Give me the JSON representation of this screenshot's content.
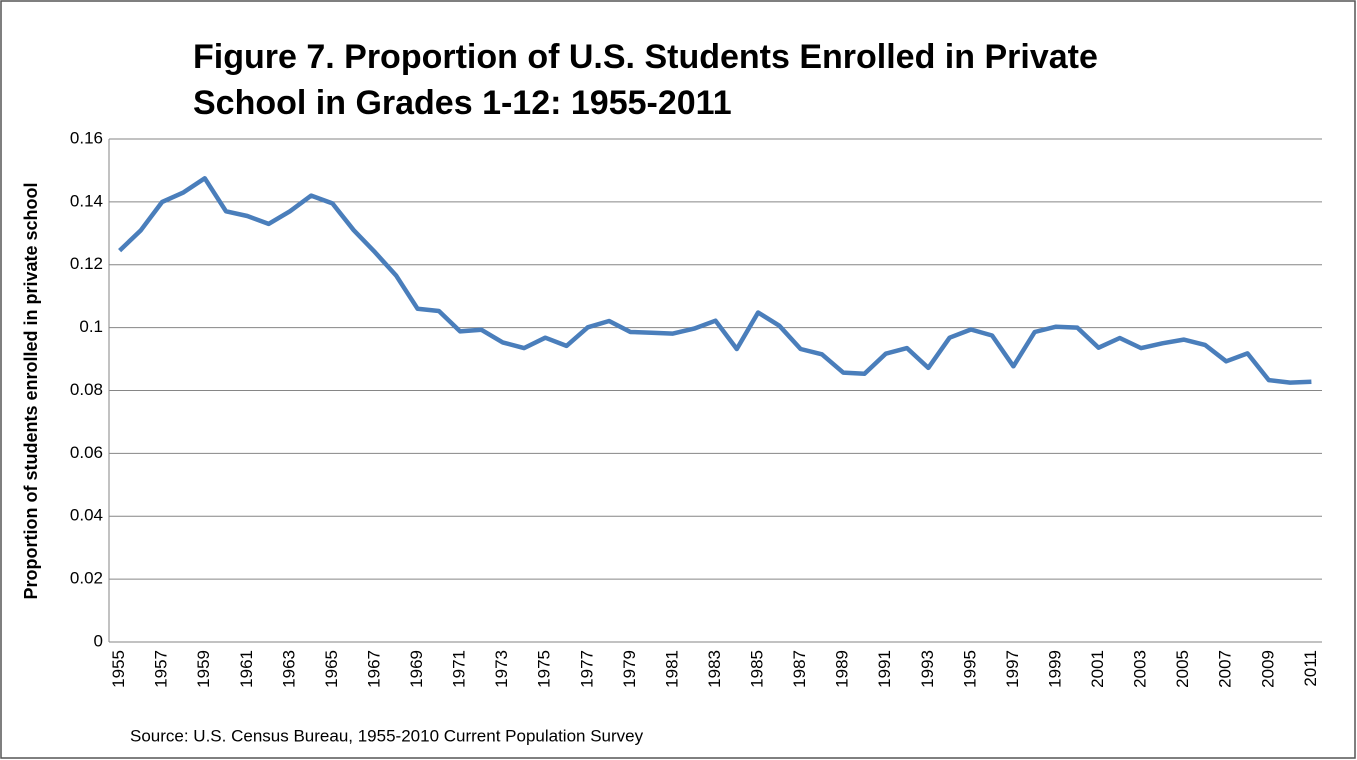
{
  "chart_data": {
    "type": "line",
    "title": "Figure 7. Proportion of U.S. Students Enrolled in Private School in Grades 1-12: 1955-2011",
    "y_label": "Proportion of students enrolled in private school",
    "source": "Source: U.S. Census Bureau, 1955-2010 Current Population Survey",
    "categories": [
      "1955",
      null,
      "1957",
      null,
      "1959",
      null,
      "1961",
      null,
      "1963",
      null,
      "1965",
      null,
      "1967",
      null,
      "1969",
      null,
      "1971",
      null,
      "1973",
      null,
      "1975",
      null,
      "1977",
      null,
      "1979",
      null,
      "1981",
      null,
      "1983",
      null,
      "1985",
      null,
      "1987",
      null,
      "1989",
      null,
      "1991",
      null,
      "1993",
      null,
      "1995",
      null,
      "1997",
      null,
      "1999",
      null,
      "2001",
      null,
      "2003",
      null,
      "2005",
      null,
      "2007",
      null,
      "2009",
      null,
      "2011"
    ],
    "values": [
      0.1245,
      0.131,
      0.14,
      0.143,
      0.1475,
      0.137,
      0.1355,
      0.133,
      0.137,
      0.142,
      0.1395,
      0.131,
      0.124,
      0.1165,
      0.106,
      0.1053,
      0.0988,
      0.0993,
      0.0953,
      0.0935,
      0.0968,
      0.0942,
      0.1001,
      0.1021,
      0.0986,
      0.0984,
      0.0981,
      0.0997,
      0.1022,
      0.0932,
      0.1048,
      0.1006,
      0.0932,
      0.0915,
      0.0857,
      0.0853,
      0.0917,
      0.0935,
      0.0872,
      0.0968,
      0.0994,
      0.0975,
      0.0877,
      0.0986,
      0.1003,
      0.1,
      0.0936,
      0.0967,
      0.0935,
      0.095,
      0.0962,
      0.0945,
      0.0893,
      0.0918,
      0.0833,
      0.0825,
      0.0828
    ],
    "color": "#4a7ebb",
    "ylim": [
      0,
      0.16
    ],
    "yticks": [
      0,
      0.02,
      0.04,
      0.06,
      0.08,
      0.1,
      0.12,
      0.14,
      0.16
    ],
    "grid": true
  }
}
